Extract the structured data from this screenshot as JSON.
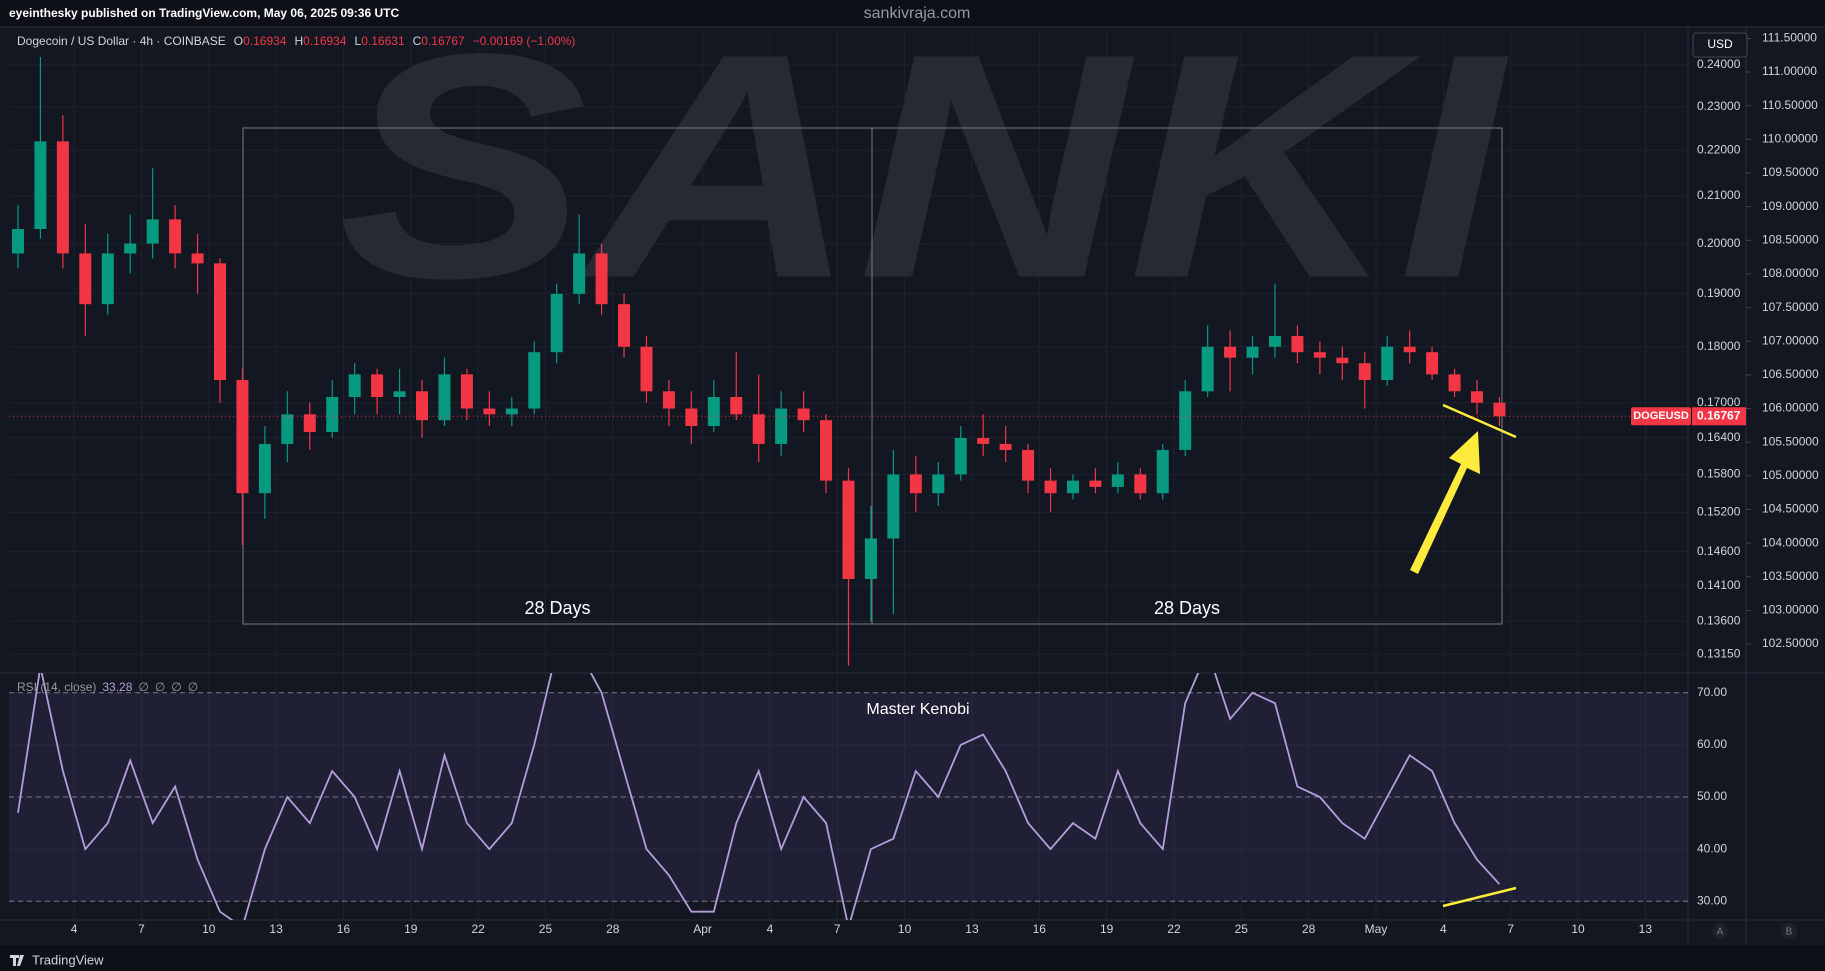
{
  "header": {
    "publisher": "eyeinthesky published on TradingView.com, May 06, 2025 09:36 UTC",
    "site": "sankivraja.com",
    "footer": "TradingView",
    "axis_buttons": [
      "A",
      "B"
    ]
  },
  "chart_data": [
    {
      "type": "candlestick",
      "symbol": "Dogecoin / US Dollar · 4h · COINBASE",
      "ohlc": [
        {
          "key": "O",
          "value": "0.16934"
        },
        {
          "key": "H",
          "value": "0.16934"
        },
        {
          "key": "L",
          "value": "0.16631"
        },
        {
          "key": "C",
          "value": "0.16767"
        }
      ],
      "change": "−0.00169 (−1.00%)",
      "currency": "USD",
      "price_tag": "DOGEUSD",
      "price_line": 0.16767,
      "watermark": "SANKI",
      "annotations": [
        "28 Days",
        "28 Days"
      ],
      "up_color": "#089981",
      "down_color": "#f23645",
      "open": [
        0.198,
        0.203,
        0.222,
        0.198,
        0.188,
        0.198,
        0.2,
        0.205,
        0.198,
        0.196,
        0.174,
        0.155,
        0.163,
        0.168,
        0.165,
        0.171,
        0.175,
        0.171,
        0.172,
        0.167,
        0.175,
        0.169,
        0.168,
        0.169,
        0.179,
        0.19,
        0.198,
        0.188,
        0.18,
        0.172,
        0.169,
        0.166,
        0.171,
        0.168,
        0.163,
        0.169,
        0.167,
        0.157,
        0.142,
        0.148,
        0.158,
        0.155,
        0.158,
        0.164,
        0.163,
        0.162,
        0.157,
        0.155,
        0.157,
        0.156,
        0.158,
        0.155,
        0.162,
        0.172,
        0.18,
        0.178,
        0.18,
        0.182,
        0.179,
        0.178,
        0.177,
        0.174,
        0.18,
        0.179,
        0.175,
        0.172,
        0.17
      ],
      "high": [
        0.208,
        0.242,
        0.228,
        0.204,
        0.202,
        0.206,
        0.216,
        0.208,
        0.202,
        0.197,
        0.176,
        0.166,
        0.172,
        0.17,
        0.174,
        0.177,
        0.176,
        0.176,
        0.174,
        0.178,
        0.176,
        0.172,
        0.171,
        0.181,
        0.192,
        0.206,
        0.2,
        0.19,
        0.182,
        0.174,
        0.172,
        0.174,
        0.179,
        0.175,
        0.172,
        0.172,
        0.168,
        0.159,
        0.153,
        0.162,
        0.161,
        0.16,
        0.166,
        0.168,
        0.166,
        0.163,
        0.159,
        0.158,
        0.159,
        0.16,
        0.159,
        0.163,
        0.174,
        0.184,
        0.183,
        0.182,
        0.192,
        0.184,
        0.181,
        0.18,
        0.179,
        0.182,
        0.183,
        0.18,
        0.176,
        0.174,
        0.171
      ],
      "low": [
        0.195,
        0.201,
        0.195,
        0.182,
        0.186,
        0.194,
        0.197,
        0.195,
        0.19,
        0.17,
        0.147,
        0.151,
        0.16,
        0.162,
        0.164,
        0.168,
        0.168,
        0.168,
        0.164,
        0.166,
        0.167,
        0.166,
        0.166,
        0.168,
        0.177,
        0.188,
        0.186,
        0.178,
        0.17,
        0.166,
        0.163,
        0.165,
        0.167,
        0.16,
        0.161,
        0.165,
        0.155,
        0.13,
        0.136,
        0.137,
        0.152,
        0.153,
        0.157,
        0.161,
        0.16,
        0.155,
        0.152,
        0.154,
        0.155,
        0.155,
        0.154,
        0.154,
        0.161,
        0.171,
        0.172,
        0.175,
        0.178,
        0.177,
        0.175,
        0.174,
        0.169,
        0.173,
        0.177,
        0.174,
        0.171,
        0.168,
        0.166
      ],
      "close": [
        0.203,
        0.222,
        0.198,
        0.188,
        0.198,
        0.2,
        0.205,
        0.198,
        0.196,
        0.174,
        0.155,
        0.163,
        0.168,
        0.165,
        0.171,
        0.175,
        0.171,
        0.172,
        0.167,
        0.175,
        0.169,
        0.168,
        0.169,
        0.179,
        0.19,
        0.198,
        0.188,
        0.18,
        0.172,
        0.169,
        0.166,
        0.171,
        0.168,
        0.163,
        0.169,
        0.167,
        0.157,
        0.142,
        0.148,
        0.158,
        0.155,
        0.158,
        0.164,
        0.163,
        0.162,
        0.157,
        0.155,
        0.157,
        0.156,
        0.158,
        0.155,
        0.162,
        0.172,
        0.18,
        0.178,
        0.18,
        0.182,
        0.179,
        0.178,
        0.177,
        0.174,
        0.18,
        0.179,
        0.175,
        0.172,
        0.17,
        0.16767
      ],
      "xlim": [
        0.1,
        74.9
      ],
      "xticks": [
        {
          "value": 3,
          "label": "4"
        },
        {
          "value": 6,
          "label": "7"
        },
        {
          "value": 9,
          "label": "10"
        },
        {
          "value": 12,
          "label": "13"
        },
        {
          "value": 15,
          "label": "16"
        },
        {
          "value": 18,
          "label": "19"
        },
        {
          "value": 21,
          "label": "22"
        },
        {
          "value": 24,
          "label": "25"
        },
        {
          "value": 27,
          "label": "28"
        },
        {
          "value": 31,
          "label": "Apr"
        },
        {
          "value": 34,
          "label": "4"
        },
        {
          "value": 37,
          "label": "7"
        },
        {
          "value": 40,
          "label": "10"
        },
        {
          "value": 43,
          "label": "13"
        },
        {
          "value": 46,
          "label": "16"
        },
        {
          "value": 49,
          "label": "19"
        },
        {
          "value": 52,
          "label": "22"
        },
        {
          "value": 55,
          "label": "25"
        },
        {
          "value": 58,
          "label": "28"
        },
        {
          "value": 61,
          "label": "May"
        },
        {
          "value": 64,
          "label": "4"
        },
        {
          "value": 67,
          "label": "7"
        },
        {
          "value": 70,
          "label": "10"
        },
        {
          "value": 73,
          "label": "13"
        }
      ],
      "log_scale": true,
      "ylim": [
        0.129,
        0.249
      ],
      "yticks": [
        {
          "value": 0.24,
          "label": "0.24000"
        },
        {
          "value": 0.23,
          "label": "0.23000"
        },
        {
          "value": 0.22,
          "label": "0.22000"
        },
        {
          "value": 0.21,
          "label": "0.21000"
        },
        {
          "value": 0.2,
          "label": "0.20000"
        },
        {
          "value": 0.19,
          "label": "0.19000"
        },
        {
          "value": 0.18,
          "label": "0.18000"
        },
        {
          "value": 0.17,
          "label": "0.17000"
        },
        {
          "value": 0.164,
          "label": "0.16400"
        },
        {
          "value": 0.158,
          "label": "0.15800"
        },
        {
          "value": 0.152,
          "label": "0.15200"
        },
        {
          "value": 0.146,
          "label": "0.14600"
        },
        {
          "value": 0.141,
          "label": "0.14100"
        },
        {
          "value": 0.136,
          "label": "0.13600"
        },
        {
          "value": 0.1315,
          "label": "0.13150"
        }
      ],
      "y2lim": [
        102.07,
        111.64
      ],
      "y2ticks": [
        {
          "value": 111.5,
          "label": "111.50000"
        },
        {
          "value": 111,
          "label": "111.00000"
        },
        {
          "value": 110.5,
          "label": "110.50000"
        },
        {
          "value": 110,
          "label": "110.00000"
        },
        {
          "value": 109.5,
          "label": "109.50000"
        },
        {
          "value": 109,
          "label": "109.00000"
        },
        {
          "value": 108.5,
          "label": "108.50000"
        },
        {
          "value": 108,
          "label": "108.00000"
        },
        {
          "value": 107.5,
          "label": "107.50000"
        },
        {
          "value": 107,
          "label": "107.00000"
        },
        {
          "value": 106.5,
          "label": "106.50000"
        },
        {
          "value": 106,
          "label": "106.00000"
        },
        {
          "value": 105.5,
          "label": "105.50000"
        },
        {
          "value": 105,
          "label": "105.00000"
        },
        {
          "value": 104.5,
          "label": "104.50000"
        },
        {
          "value": 104,
          "label": "104.00000"
        },
        {
          "value": 103.5,
          "label": "103.50000"
        },
        {
          "value": 103,
          "label": "103.00000"
        },
        {
          "value": 102.5,
          "label": "102.50000"
        }
      ],
      "grid": true
    },
    {
      "type": "line",
      "legend": "RSI (14, close)",
      "legend_values": [
        "33.28",
        "∅",
        "∅",
        "∅",
        "∅"
      ],
      "annotation": "Master Kenobi",
      "series": [
        {
          "name": "RSI (14, close)",
          "color": "#b39ddb",
          "values": [
            47,
            75,
            55,
            40,
            45,
            57,
            45,
            52,
            38,
            28,
            25,
            40,
            50,
            45,
            55,
            50,
            40,
            55,
            40,
            58,
            45,
            40,
            45,
            60,
            78,
            78,
            70,
            55,
            40,
            35,
            28,
            28,
            45,
            55,
            40,
            50,
            45,
            25,
            40,
            42,
            55,
            50,
            60,
            62,
            55,
            45,
            40,
            45,
            42,
            55,
            45,
            40,
            68,
            78,
            65,
            70,
            68,
            52,
            50,
            45,
            42,
            50,
            58,
            55,
            45,
            38,
            33.28
          ]
        }
      ],
      "band_color": "#7e57c2",
      "levels": [
        30,
        50,
        70
      ],
      "xlim": [
        0.1,
        74.9
      ],
      "ylim": [
        26.4,
        73.8
      ],
      "yticks": [
        {
          "value": 70,
          "label": "70.00"
        },
        {
          "value": 60,
          "label": "60.00"
        },
        {
          "value": 50,
          "label": "50.00"
        },
        {
          "value": 40,
          "label": "40.00"
        },
        {
          "value": 30,
          "label": "30.00"
        }
      ],
      "grid": true
    }
  ]
}
